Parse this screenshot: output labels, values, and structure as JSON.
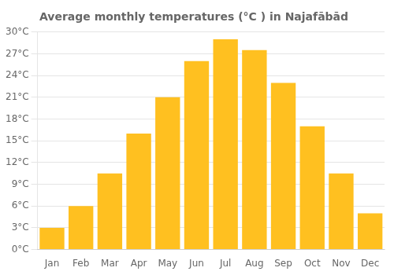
{
  "chart_data": {
    "type": "bar",
    "title": "Average monthly temperatures (°C ) in Najafābād",
    "categories": [
      "Jan",
      "Feb",
      "Mar",
      "Apr",
      "May",
      "Jun",
      "Jul",
      "Aug",
      "Sep",
      "Oct",
      "Nov",
      "Dec"
    ],
    "values": [
      3.0,
      6.0,
      10.5,
      16.0,
      21.0,
      26.0,
      29.0,
      27.5,
      23.0,
      17.0,
      10.5,
      5.0
    ],
    "color": "#FFC020",
    "ylim": [
      0,
      30
    ],
    "yticks": [
      {
        "value": 0,
        "label": "0°C"
      },
      {
        "value": 3,
        "label": "3°C"
      },
      {
        "value": 6,
        "label": "6°C"
      },
      {
        "value": 9,
        "label": "9°C"
      },
      {
        "value": 12,
        "label": "12°C"
      },
      {
        "value": 15,
        "label": "15°C"
      },
      {
        "value": 18,
        "label": "18°C"
      },
      {
        "value": 21,
        "label": "21°C"
      },
      {
        "value": 24,
        "label": "24°C"
      },
      {
        "value": 27,
        "label": "27°C"
      },
      {
        "value": 30,
        "label": "30°C"
      }
    ],
    "grid": true
  }
}
